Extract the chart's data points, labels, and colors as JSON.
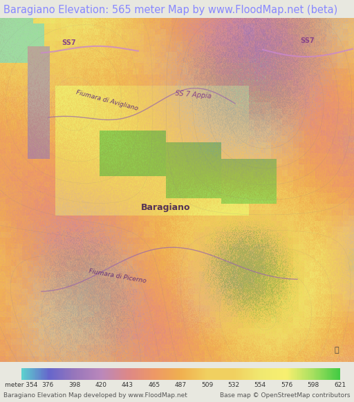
{
  "title": "Baragiano Elevation: 565 meter Map by www.FloodMap.net (beta)",
  "title_color": "#8888ff",
  "title_fontsize": 10.5,
  "background_color": "#e8e8e0",
  "colorbar_labels": [
    "meter 354",
    "376",
    "398",
    "420",
    "443",
    "465",
    "487",
    "509",
    "532",
    "554",
    "576",
    "598",
    "621"
  ],
  "colorbar_values": [
    354,
    376,
    398,
    420,
    443,
    465,
    487,
    509,
    532,
    554,
    576,
    598,
    621
  ],
  "colorbar_colors": [
    "#5dcfcf",
    "#6666cc",
    "#9977bb",
    "#bb88bb",
    "#dd8888",
    "#ee9966",
    "#f0b050",
    "#f0d060",
    "#f0d060",
    "#f0e870",
    "#f8f070",
    "#a8e060",
    "#44cc44"
  ],
  "footer_left": "Baragiano Elevation Map developed by www.FloodMap.net",
  "footer_right": "Base map © OpenStreetMap contributors",
  "map_center_label": "Baragiano",
  "road_label_1": "SS7",
  "road_label_2": "SS7",
  "road_label_3": "SS 7 Appia",
  "river_label_1": "Fiumara di Avigliano",
  "river_label_2": "Fiumara di Picerno"
}
